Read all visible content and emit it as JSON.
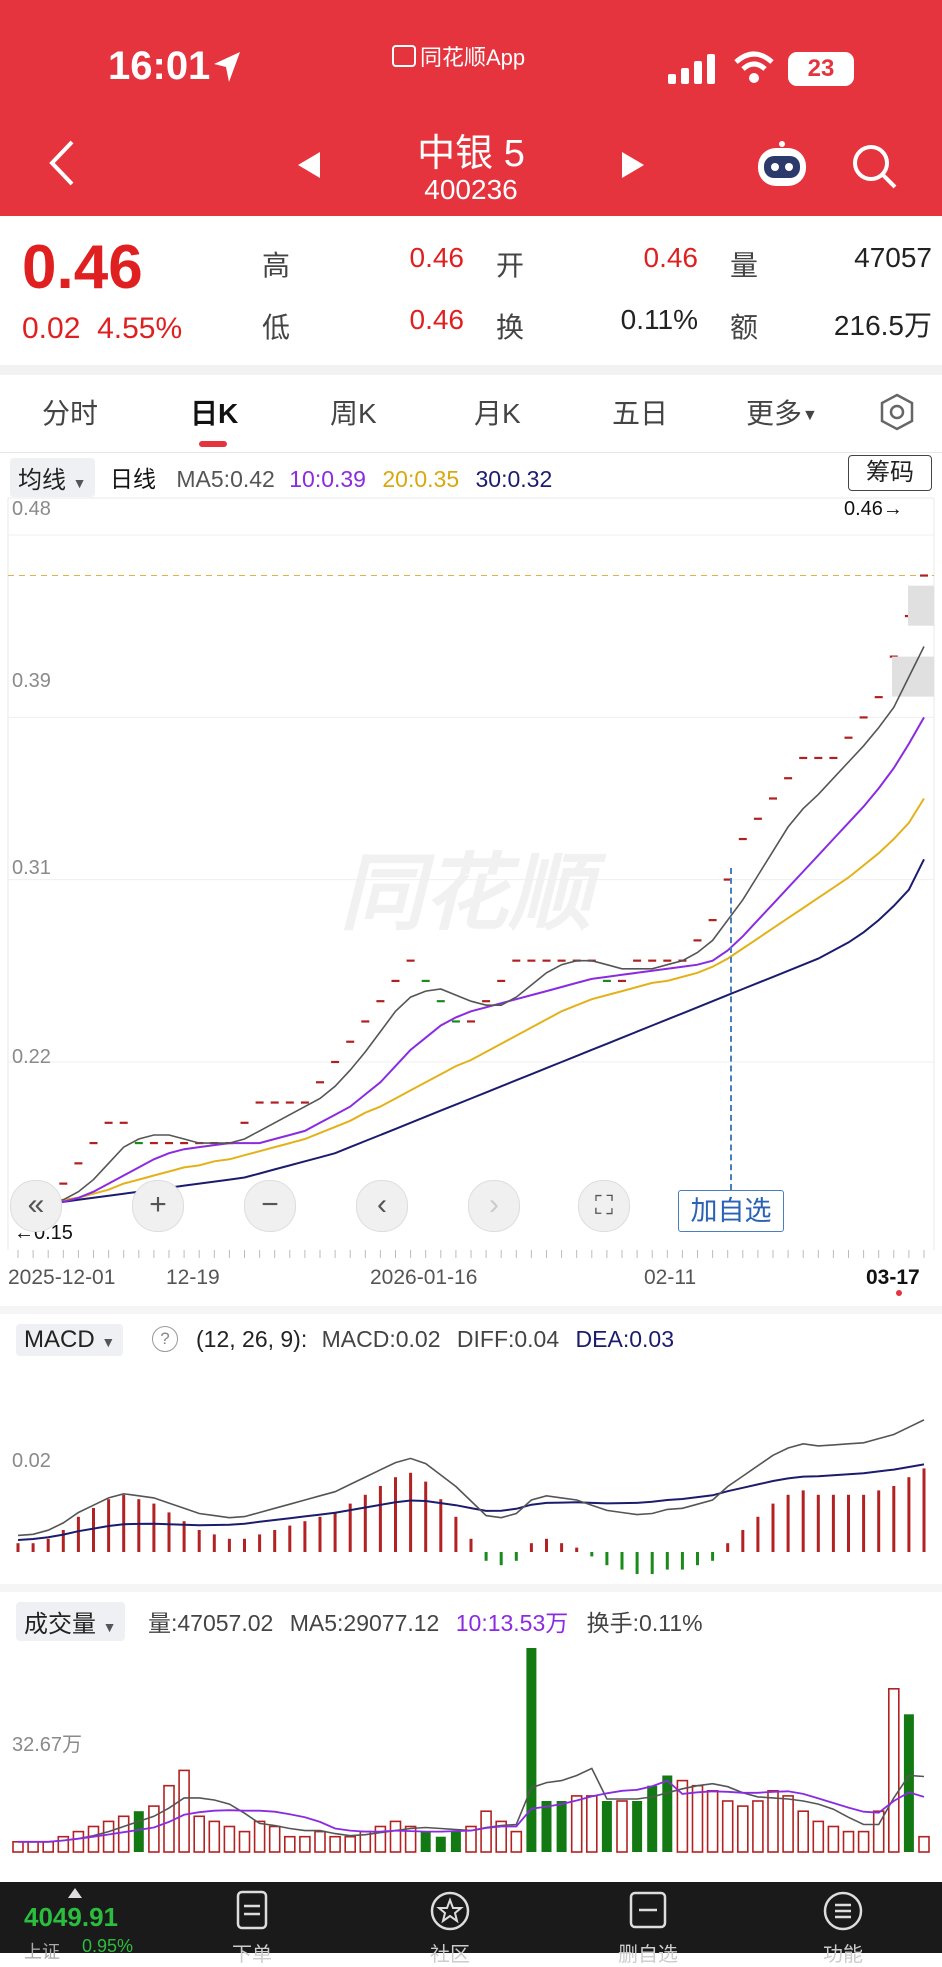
{
  "status_bar": {
    "time": "16:01",
    "app_name": "同花顺App",
    "battery": "23"
  },
  "header": {
    "name": "中银 5",
    "code": "400236"
  },
  "quote": {
    "price": "0.46",
    "change": "0.02",
    "change_pct": "4.55%",
    "fields": [
      {
        "label": "高",
        "value": "0.46",
        "color": "#e02020"
      },
      {
        "label": "开",
        "value": "0.46",
        "color": "#e02020"
      },
      {
        "label": "量",
        "value": "47057",
        "color": "#222222"
      },
      {
        "label": "低",
        "value": "0.46",
        "color": "#e02020"
      },
      {
        "label": "换",
        "value": "0.11%",
        "color": "#222222"
      },
      {
        "label": "额",
        "value": "216.5万",
        "color": "#222222"
      }
    ]
  },
  "tabs": [
    "分时",
    "日K",
    "周K",
    "月K",
    "五日",
    "更多"
  ],
  "ma_bar": {
    "selector": "均线",
    "period": "日线",
    "ma5": "MA5:0.42",
    "ma10": "10:0.39",
    "ma20": "20:0.35",
    "ma30": "30:0.32",
    "chips": "筹码",
    "colors": {
      "ma5": "#555555",
      "ma10": "#8a2be2",
      "ma20": "#e3b21a",
      "ma30": "#1c1c6e"
    }
  },
  "kline": {
    "y_labels": [
      "0.48",
      "0.39",
      "0.31",
      "0.22"
    ],
    "last_price_label": "0.46→",
    "low_label": "←0.15",
    "dates": [
      "2025-12-01",
      "12-19",
      "2026-01-16",
      "02-11",
      "03-17"
    ],
    "add_watch": "加自选",
    "controls": [
      "«",
      "+",
      "−",
      "‹",
      "›",
      "⛶"
    ]
  },
  "macd": {
    "selector": "MACD",
    "params": "(12, 26, 9):",
    "macd": "MACD:0.02",
    "diff": "DIFF:0.04",
    "dea": "DEA:0.03",
    "y_label": "0.02"
  },
  "volume": {
    "selector": "成交量",
    "vol": "量:47057.02",
    "ma5": "MA5:29077.12",
    "ma10": "10:13.53万",
    "turnover": "换手:0.11%",
    "y_label": "32.67万"
  },
  "bottom_nav": {
    "index_value": "4049.91",
    "index_change": "0.95%",
    "index_name": "上证",
    "items": [
      "下单",
      "社区",
      "删自选",
      "功能"
    ]
  },
  "chart_data": {
    "type": "candlestick",
    "ylim": [
      0.15,
      0.48
    ],
    "close": [
      0.15,
      0.15,
      0.15,
      0.16,
      0.17,
      0.18,
      0.19,
      0.19,
      0.18,
      0.18,
      0.18,
      0.18,
      0.18,
      0.18,
      0.18,
      0.19,
      0.2,
      0.2,
      0.2,
      0.2,
      0.21,
      0.22,
      0.23,
      0.24,
      0.25,
      0.26,
      0.27,
      0.26,
      0.25,
      0.24,
      0.24,
      0.25,
      0.26,
      0.27,
      0.27,
      0.27,
      0.27,
      0.27,
      0.27,
      0.26,
      0.26,
      0.27,
      0.27,
      0.27,
      0.27,
      0.28,
      0.29,
      0.31,
      0.33,
      0.34,
      0.35,
      0.36,
      0.37,
      0.37,
      0.37,
      0.38,
      0.39,
      0.4,
      0.42,
      0.44,
      0.46
    ],
    "ma5": [
      0.15,
      0.15,
      0.15,
      0.152,
      0.156,
      0.162,
      0.17,
      0.178,
      0.182,
      0.184,
      0.184,
      0.182,
      0.18,
      0.18,
      0.18,
      0.182,
      0.186,
      0.19,
      0.194,
      0.198,
      0.202,
      0.208,
      0.216,
      0.225,
      0.235,
      0.245,
      0.252,
      0.255,
      0.256,
      0.253,
      0.25,
      0.248,
      0.248,
      0.252,
      0.258,
      0.264,
      0.268,
      0.27,
      0.27,
      0.268,
      0.266,
      0.266,
      0.266,
      0.268,
      0.27,
      0.274,
      0.28,
      0.29,
      0.3,
      0.312,
      0.324,
      0.336,
      0.345,
      0.352,
      0.36,
      0.368,
      0.376,
      0.385,
      0.395,
      0.41,
      0.425
    ],
    "ma10": [
      0.15,
      0.15,
      0.15,
      0.151,
      0.153,
      0.156,
      0.16,
      0.164,
      0.168,
      0.172,
      0.175,
      0.177,
      0.178,
      0.179,
      0.18,
      0.18,
      0.18,
      0.182,
      0.184,
      0.186,
      0.19,
      0.194,
      0.198,
      0.204,
      0.21,
      0.218,
      0.226,
      0.232,
      0.238,
      0.242,
      0.245,
      0.247,
      0.249,
      0.251,
      0.253,
      0.255,
      0.257,
      0.259,
      0.261,
      0.262,
      0.263,
      0.264,
      0.265,
      0.266,
      0.267,
      0.268,
      0.27,
      0.275,
      0.282,
      0.29,
      0.298,
      0.306,
      0.314,
      0.322,
      0.33,
      0.338,
      0.346,
      0.355,
      0.365,
      0.377,
      0.39
    ],
    "ma20": [
      0.15,
      0.15,
      0.151,
      0.152,
      0.153,
      0.155,
      0.157,
      0.16,
      0.162,
      0.164,
      0.166,
      0.168,
      0.169,
      0.171,
      0.172,
      0.174,
      0.176,
      0.178,
      0.18,
      0.182,
      0.185,
      0.188,
      0.191,
      0.195,
      0.198,
      0.202,
      0.206,
      0.21,
      0.214,
      0.218,
      0.221,
      0.225,
      0.229,
      0.233,
      0.237,
      0.241,
      0.245,
      0.248,
      0.251,
      0.253,
      0.255,
      0.257,
      0.259,
      0.26,
      0.262,
      0.264,
      0.267,
      0.271,
      0.276,
      0.281,
      0.286,
      0.291,
      0.296,
      0.301,
      0.306,
      0.311,
      0.317,
      0.323,
      0.33,
      0.338,
      0.35
    ],
    "ma30": [
      0.15,
      0.15,
      0.15,
      0.151,
      0.152,
      0.153,
      0.154,
      0.155,
      0.156,
      0.157,
      0.158,
      0.159,
      0.16,
      0.161,
      0.162,
      0.163,
      0.165,
      0.167,
      0.169,
      0.171,
      0.173,
      0.175,
      0.178,
      0.181,
      0.184,
      0.187,
      0.19,
      0.193,
      0.196,
      0.199,
      0.202,
      0.205,
      0.208,
      0.211,
      0.214,
      0.217,
      0.22,
      0.223,
      0.226,
      0.229,
      0.232,
      0.235,
      0.238,
      0.241,
      0.244,
      0.247,
      0.25,
      0.253,
      0.256,
      0.259,
      0.262,
      0.265,
      0.268,
      0.271,
      0.275,
      0.279,
      0.284,
      0.29,
      0.297,
      0.305,
      0.32
    ],
    "macd_hist": [
      0.002,
      0.002,
      0.003,
      0.005,
      0.008,
      0.01,
      0.012,
      0.013,
      0.012,
      0.011,
      0.009,
      0.007,
      0.005,
      0.004,
      0.003,
      0.003,
      0.004,
      0.005,
      0.006,
      0.007,
      0.008,
      0.009,
      0.011,
      0.013,
      0.015,
      0.017,
      0.018,
      0.016,
      0.012,
      0.008,
      0.003,
      -0.002,
      -0.003,
      -0.002,
      0.002,
      0.003,
      0.002,
      0.001,
      -0.001,
      -0.003,
      -0.004,
      -0.005,
      -0.005,
      -0.004,
      -0.004,
      -0.003,
      -0.002,
      0.002,
      0.005,
      0.008,
      0.011,
      0.013,
      0.014,
      0.013,
      0.013,
      0.013,
      0.013,
      0.014,
      0.015,
      0.017,
      0.019
    ],
    "volume": [
      2,
      2,
      2,
      3,
      4,
      5,
      6,
      7,
      8,
      9,
      13,
      16,
      7,
      6,
      5,
      4,
      6,
      5,
      3,
      3,
      4,
      3,
      3,
      4,
      5,
      6,
      5,
      4,
      3,
      4,
      5,
      8,
      6,
      4,
      40,
      10,
      10,
      11,
      11,
      10,
      10,
      10,
      13,
      15,
      14,
      13,
      12,
      10,
      9,
      10,
      12,
      11,
      8,
      6,
      5,
      4,
      4,
      8,
      32,
      27,
      3
    ]
  }
}
